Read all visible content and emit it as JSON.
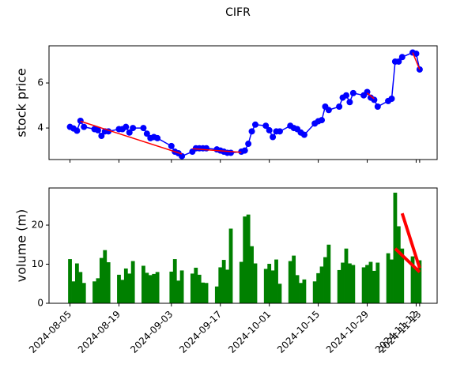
{
  "chart_data": [
    {
      "type": "line",
      "title": "CIFR",
      "ylabel": "stock price",
      "ylabel_color": "#0000ff",
      "x": [
        "2024-08-05",
        "2024-08-06",
        "2024-08-07",
        "2024-08-08",
        "2024-08-09",
        "2024-08-12",
        "2024-08-13",
        "2024-08-14",
        "2024-08-15",
        "2024-08-16",
        "2024-08-19",
        "2024-08-20",
        "2024-08-21",
        "2024-08-22",
        "2024-08-23",
        "2024-08-26",
        "2024-08-27",
        "2024-08-28",
        "2024-08-29",
        "2024-08-30",
        "2024-09-03",
        "2024-09-04",
        "2024-09-05",
        "2024-09-06",
        "2024-09-09",
        "2024-09-10",
        "2024-09-11",
        "2024-09-12",
        "2024-09-13",
        "2024-09-16",
        "2024-09-17",
        "2024-09-18",
        "2024-09-19",
        "2024-09-20",
        "2024-09-23",
        "2024-09-24",
        "2024-09-25",
        "2024-09-26",
        "2024-09-27",
        "2024-09-30",
        "2024-10-01",
        "2024-10-02",
        "2024-10-03",
        "2024-10-04",
        "2024-10-07",
        "2024-10-08",
        "2024-10-09",
        "2024-10-10",
        "2024-10-11",
        "2024-10-14",
        "2024-10-15",
        "2024-10-16",
        "2024-10-17",
        "2024-10-18",
        "2024-10-21",
        "2024-10-22",
        "2024-10-23",
        "2024-10-24",
        "2024-10-25",
        "2024-10-28",
        "2024-10-29",
        "2024-10-30",
        "2024-10-31",
        "2024-11-01",
        "2024-11-04",
        "2024-11-05",
        "2024-11-06",
        "2024-11-07",
        "2024-11-08",
        "2024-11-11",
        "2024-11-12",
        "2024-11-13"
      ],
      "series": [
        {
          "color": "#0000ff",
          "values": [
            4.05,
            3.98,
            3.88,
            4.32,
            4.05,
            3.95,
            3.9,
            3.65,
            3.85,
            3.85,
            3.95,
            3.95,
            4.05,
            3.8,
            4.0,
            4.0,
            3.75,
            3.55,
            3.6,
            3.55,
            3.2,
            2.95,
            2.88,
            2.75,
            2.95,
            3.1,
            3.1,
            3.1,
            3.1,
            3.05,
            3.0,
            2.95,
            2.9,
            2.9,
            2.95,
            3.0,
            3.3,
            3.85,
            4.15,
            4.1,
            3.9,
            3.6,
            3.85,
            3.85,
            4.1,
            4.0,
            3.95,
            3.8,
            3.7,
            4.2,
            4.3,
            4.35,
            4.95,
            4.8,
            4.95,
            5.35,
            5.45,
            5.15,
            5.55,
            5.45,
            5.6,
            5.35,
            5.25,
            4.95,
            5.2,
            5.3,
            6.95,
            6.95,
            7.15,
            7.35,
            7.3,
            6.6
          ]
        }
      ],
      "trend_lines": [
        {
          "color": "#ff0000",
          "x": [
            "2024-08-08",
            "2024-09-06"
          ],
          "values": [
            4.3,
            2.85
          ]
        },
        {
          "color": "#ff0000",
          "x": [
            "2024-09-09",
            "2024-09-23"
          ],
          "values": [
            3.08,
            2.92
          ]
        },
        {
          "color": "#ff0000",
          "x": [
            "2024-10-29",
            "2024-10-31"
          ],
          "values": [
            5.55,
            5.3
          ]
        },
        {
          "color": "#ff0000",
          "x": [
            "2024-11-11",
            "2024-11-13"
          ],
          "values": [
            7.35,
            6.6
          ]
        }
      ],
      "xlim": [
        "2024-07-30",
        "2024-11-18"
      ],
      "xticks": [
        "2024-08-05",
        "2024-08-19",
        "2024-09-03",
        "2024-09-17",
        "2024-10-01",
        "2024-10-15",
        "2024-10-29",
        "2024-11-12",
        "2024-11-13"
      ],
      "ylim": [
        2.6,
        7.65
      ],
      "yticks": [
        4,
        6
      ]
    },
    {
      "type": "bar",
      "ylabel": "volume (m)",
      "ylabel_color": "#008000",
      "color": "#008000",
      "x": [
        "2024-08-05",
        "2024-08-06",
        "2024-08-07",
        "2024-08-08",
        "2024-08-09",
        "2024-08-12",
        "2024-08-13",
        "2024-08-14",
        "2024-08-15",
        "2024-08-16",
        "2024-08-19",
        "2024-08-20",
        "2024-08-21",
        "2024-08-22",
        "2024-08-23",
        "2024-08-26",
        "2024-08-27",
        "2024-08-28",
        "2024-08-29",
        "2024-08-30",
        "2024-09-03",
        "2024-09-04",
        "2024-09-05",
        "2024-09-06",
        "2024-09-09",
        "2024-09-10",
        "2024-09-11",
        "2024-09-12",
        "2024-09-13",
        "2024-09-16",
        "2024-09-17",
        "2024-09-18",
        "2024-09-19",
        "2024-09-20",
        "2024-09-23",
        "2024-09-24",
        "2024-09-25",
        "2024-09-26",
        "2024-09-27",
        "2024-09-30",
        "2024-10-01",
        "2024-10-02",
        "2024-10-03",
        "2024-10-04",
        "2024-10-07",
        "2024-10-08",
        "2024-10-09",
        "2024-10-10",
        "2024-10-11",
        "2024-10-14",
        "2024-10-15",
        "2024-10-16",
        "2024-10-17",
        "2024-10-18",
        "2024-10-21",
        "2024-10-22",
        "2024-10-23",
        "2024-10-24",
        "2024-10-25",
        "2024-10-28",
        "2024-10-29",
        "2024-10-30",
        "2024-10-31",
        "2024-11-01",
        "2024-11-04",
        "2024-11-05",
        "2024-11-06",
        "2024-11-07",
        "2024-11-08",
        "2024-11-11",
        "2024-11-12",
        "2024-11-13"
      ],
      "values": [
        11.3,
        5.6,
        10.2,
        8.0,
        5.2,
        5.6,
        6.4,
        11.6,
        13.6,
        10.5,
        7.3,
        6.0,
        8.9,
        7.6,
        10.8,
        9.6,
        7.8,
        7.2,
        7.5,
        8.0,
        8.1,
        11.3,
        5.8,
        8.4,
        7.6,
        9.1,
        7.3,
        5.3,
        5.2,
        4.3,
        9.2,
        11.1,
        8.6,
        19.1,
        10.6,
        22.2,
        22.7,
        14.6,
        10.2,
        8.8,
        10.1,
        8.4,
        11.2,
        5.0,
        10.8,
        12.2,
        7.2,
        5.2,
        6.1,
        5.6,
        7.7,
        9.4,
        11.8,
        15.0,
        8.5,
        10.4,
        14.0,
        10.2,
        9.8,
        9.2,
        9.8,
        10.6,
        8.3,
        10.4,
        12.8,
        11.2,
        28.3,
        19.7,
        14.0,
        12.0,
        9.0,
        11.0
      ],
      "trend_lines": [
        {
          "color": "#ff0000",
          "x": [
            "2024-11-08",
            "2024-11-13"
          ],
          "values": [
            23,
            9
          ]
        },
        {
          "color": "#ff0000",
          "x": [
            "2024-11-06",
            "2024-11-13"
          ],
          "values": [
            14,
            8
          ]
        }
      ],
      "xlim": [
        "2024-07-30",
        "2024-11-18"
      ],
      "xticks": [
        "2024-08-05",
        "2024-08-19",
        "2024-09-03",
        "2024-09-17",
        "2024-10-01",
        "2024-10-15",
        "2024-10-29",
        "2024-11-12",
        "2024-11-13"
      ],
      "ylim": [
        0,
        29.5
      ],
      "yticks": [
        0,
        10,
        20
      ]
    }
  ]
}
